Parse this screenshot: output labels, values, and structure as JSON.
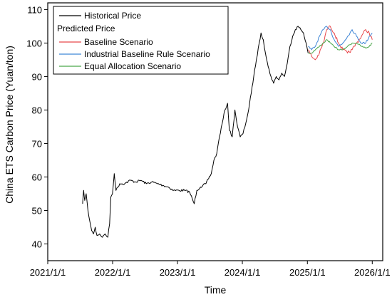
{
  "chart_data": {
    "type": "line",
    "xlabel": "Time",
    "ylabel": "China ETS Carbon Price (Yuan/ton)",
    "xlim": [
      "2021/1/1",
      "2026/3/1"
    ],
    "ylim": [
      35,
      112
    ],
    "x_ticks": [
      "2021/1/1",
      "2022/1/1",
      "2023/1/1",
      "2024/1/1",
      "2025/1/1",
      "2026/1/1"
    ],
    "y_ticks": [
      40,
      50,
      60,
      70,
      80,
      90,
      100,
      110
    ],
    "grid": false,
    "legend": {
      "position": "top-left",
      "group_title": "Predicted Price"
    },
    "series": [
      {
        "name": "Historical Price",
        "color": "#000000",
        "points": [
          [
            "2021/7/16",
            52
          ],
          [
            "2021/7/22",
            56
          ],
          [
            "2021/7/28",
            53
          ],
          [
            "2021/8/5",
            55
          ],
          [
            "2021/8/15",
            50
          ],
          [
            "2021/8/25",
            47
          ],
          [
            "2021/9/5",
            44
          ],
          [
            "2021/9/15",
            43
          ],
          [
            "2021/9/25",
            45
          ],
          [
            "2021/10/5",
            42.5
          ],
          [
            "2021/10/20",
            43
          ],
          [
            "2021/11/5",
            42
          ],
          [
            "2021/11/20",
            43
          ],
          [
            "2021/12/5",
            42
          ],
          [
            "2021/12/15",
            46
          ],
          [
            "2021/12/22",
            54
          ],
          [
            "2021/12/31",
            55
          ],
          [
            "2022/1/10",
            61
          ],
          [
            "2022/1/20",
            56
          ],
          [
            "2022/2/10",
            58
          ],
          [
            "2022/3/10",
            58
          ],
          [
            "2022/4/10",
            59
          ],
          [
            "2022/5/10",
            58.5
          ],
          [
            "2022/6/10",
            59
          ],
          [
            "2022/7/10",
            58
          ],
          [
            "2022/8/10",
            58.5
          ],
          [
            "2022/9/10",
            58
          ],
          [
            "2022/10/10",
            57.5
          ],
          [
            "2022/11/10",
            57
          ],
          [
            "2022/12/10",
            56
          ],
          [
            "2023/1/10",
            56
          ],
          [
            "2023/2/10",
            56
          ],
          [
            "2023/3/10",
            55.5
          ],
          [
            "2023/4/5",
            52
          ],
          [
            "2023/4/20",
            56
          ],
          [
            "2023/5/10",
            57
          ],
          [
            "2023/6/10",
            58
          ],
          [
            "2023/7/10",
            61
          ],
          [
            "2023/7/25",
            65
          ],
          [
            "2023/8/10",
            67
          ],
          [
            "2023/8/25",
            72
          ],
          [
            "2023/9/10",
            76
          ],
          [
            "2023/9/25",
            80
          ],
          [
            "2023/10/10",
            82
          ],
          [
            "2023/10/20",
            74
          ],
          [
            "2023/11/5",
            72
          ],
          [
            "2023/11/20",
            80
          ],
          [
            "2023/12/5",
            75
          ],
          [
            "2023/12/20",
            72
          ],
          [
            "2024/1/5",
            73
          ],
          [
            "2024/1/20",
            76
          ],
          [
            "2024/2/5",
            80
          ],
          [
            "2024/2/20",
            85
          ],
          [
            "2024/3/5",
            90
          ],
          [
            "2024/3/20",
            95
          ],
          [
            "2024/4/5",
            100
          ],
          [
            "2024/4/15",
            103
          ],
          [
            "2024/4/28",
            101
          ],
          [
            "2024/5/10",
            97
          ],
          [
            "2024/5/25",
            93
          ],
          [
            "2024/6/10",
            90
          ],
          [
            "2024/6/25",
            88
          ],
          [
            "2024/7/10",
            90
          ],
          [
            "2024/7/25",
            89
          ],
          [
            "2024/8/10",
            91
          ],
          [
            "2024/8/25",
            90
          ],
          [
            "2024/9/10",
            94
          ],
          [
            "2024/9/25",
            99
          ],
          [
            "2024/10/10",
            102
          ],
          [
            "2024/10/25",
            104
          ],
          [
            "2024/11/10",
            105
          ],
          [
            "2024/11/25",
            104
          ],
          [
            "2024/12/10",
            103
          ],
          [
            "2024/12/25",
            100
          ],
          [
            "2025/1/5",
            97
          ]
        ]
      },
      {
        "name": "Baseline Scenario",
        "color": "#e8474b",
        "points": [
          [
            "2025/1/5",
            98
          ],
          [
            "2025/1/25",
            96
          ],
          [
            "2025/2/15",
            95
          ],
          [
            "2025/3/10",
            97
          ],
          [
            "2025/4/1",
            100
          ],
          [
            "2025/4/20",
            104
          ],
          [
            "2025/5/10",
            105
          ],
          [
            "2025/6/1",
            103
          ],
          [
            "2025/6/25",
            100
          ],
          [
            "2025/7/20",
            98
          ],
          [
            "2025/8/15",
            97
          ],
          [
            "2025/9/10",
            98
          ],
          [
            "2025/10/5",
            100
          ],
          [
            "2025/11/1",
            102
          ],
          [
            "2025/11/25",
            104
          ],
          [
            "2025/12/15",
            103
          ],
          [
            "2026/1/1",
            101
          ]
        ]
      },
      {
        "name": "Industrial Baseline Rule Scenario",
        "color": "#3f86d6",
        "points": [
          [
            "2025/1/5",
            99
          ],
          [
            "2025/1/25",
            98
          ],
          [
            "2025/2/15",
            99
          ],
          [
            "2025/3/10",
            102
          ],
          [
            "2025/4/1",
            104
          ],
          [
            "2025/4/20",
            105
          ],
          [
            "2025/5/10",
            104
          ],
          [
            "2025/6/1",
            101
          ],
          [
            "2025/6/25",
            99
          ],
          [
            "2025/7/20",
            100
          ],
          [
            "2025/8/15",
            102
          ],
          [
            "2025/9/10",
            104
          ],
          [
            "2025/10/5",
            102
          ],
          [
            "2025/11/1",
            100
          ],
          [
            "2025/11/25",
            100
          ],
          [
            "2025/12/15",
            102
          ],
          [
            "2026/1/1",
            103
          ]
        ]
      },
      {
        "name": "Equal Allocation Scenario",
        "color": "#4aa64a",
        "points": [
          [
            "2025/1/5",
            97
          ],
          [
            "2025/1/25",
            97
          ],
          [
            "2025/2/15",
            98
          ],
          [
            "2025/3/10",
            99
          ],
          [
            "2025/4/1",
            100
          ],
          [
            "2025/4/20",
            101
          ],
          [
            "2025/5/10",
            100
          ],
          [
            "2025/6/1",
            99
          ],
          [
            "2025/6/25",
            98
          ],
          [
            "2025/7/20",
            98
          ],
          [
            "2025/8/15",
            99
          ],
          [
            "2025/9/10",
            100
          ],
          [
            "2025/10/5",
            100
          ],
          [
            "2025/11/1",
            99
          ],
          [
            "2025/11/25",
            98.5
          ],
          [
            "2025/12/15",
            99
          ],
          [
            "2026/1/1",
            100
          ]
        ]
      }
    ]
  }
}
